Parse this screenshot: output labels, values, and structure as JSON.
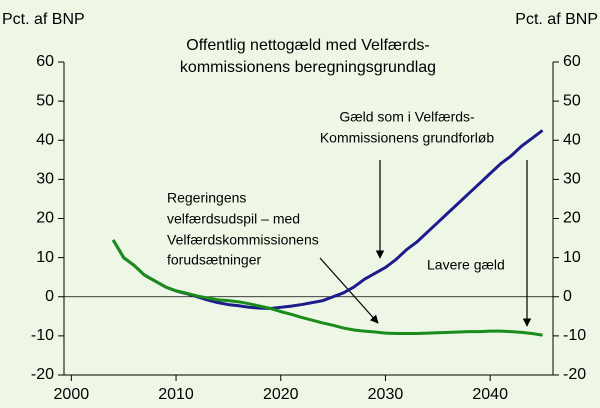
{
  "chart_data": {
    "type": "line",
    "title": [
      "Offentlig nettogæld med Velfærds-",
      "kommissionens beregningsgrundlag"
    ],
    "ylabel": "Pct. af BNP",
    "y2label": "Pct. af BNP",
    "x": [
      2004,
      2005,
      2006,
      2007,
      2008,
      2009,
      2010,
      2011,
      2012,
      2013,
      2014,
      2015,
      2016,
      2017,
      2018,
      2019,
      2020,
      2021,
      2022,
      2023,
      2024,
      2025,
      2026,
      2027,
      2028,
      2029,
      2030,
      2031,
      2032,
      2033,
      2034,
      2035,
      2036,
      2037,
      2038,
      2039,
      2040,
      2041,
      2042,
      2043,
      2044,
      2045
    ],
    "series": [
      {
        "color": "#1c1c8c",
        "values": [
          14.5,
          10,
          8,
          5.5,
          4,
          2.5,
          1.5,
          0.8,
          0,
          -0.8,
          -1.5,
          -2,
          -2.3,
          -2.7,
          -2.9,
          -3,
          -2.7,
          -2.4,
          -2,
          -1.5,
          -1,
          0,
          1,
          2.5,
          4.5,
          6,
          7.5,
          9.5,
          12,
          14,
          16.5,
          19,
          21.5,
          24,
          26.5,
          29,
          31.5,
          34,
          36,
          38.5,
          40.5,
          42.5
        ]
      },
      {
        "color": "#1a8c1a",
        "values": [
          14.5,
          10,
          8,
          5.5,
          4,
          2.5,
          1.5,
          0.9,
          0.2,
          -0.3,
          -0.8,
          -1,
          -1.3,
          -1.8,
          -2.4,
          -3,
          -3.8,
          -4.5,
          -5.3,
          -6,
          -6.7,
          -7.3,
          -8,
          -8.5,
          -8.8,
          -9,
          -9.3,
          -9.4,
          -9.4,
          -9.4,
          -9.3,
          -9.2,
          -9.1,
          -9,
          -8.9,
          -8.9,
          -8.8,
          -8.8,
          -8.9,
          -9.1,
          -9.4,
          -9.8
        ]
      }
    ],
    "xlim": [
      1999.3,
      2046
    ],
    "xticks": [
      2000,
      2010,
      2020,
      2030,
      2040
    ],
    "ylim": [
      -20,
      60
    ],
    "yticks": [
      -20,
      -10,
      0,
      10,
      20,
      30,
      40,
      50,
      60
    ],
    "y2lim": [
      -20,
      60
    ],
    "y2ticks": [
      -20,
      -10,
      0,
      10,
      20,
      30,
      40,
      50,
      60
    ],
    "annotations": [
      [
        "Gæld som i Velfærds-",
        "Kommissionens grundforløb"
      ],
      [
        "Regeringens",
        "velfærdsudspil – med",
        "Velfærdskommissionens",
        "forudsætninger"
      ],
      [
        "Lavere gæld"
      ]
    ]
  }
}
